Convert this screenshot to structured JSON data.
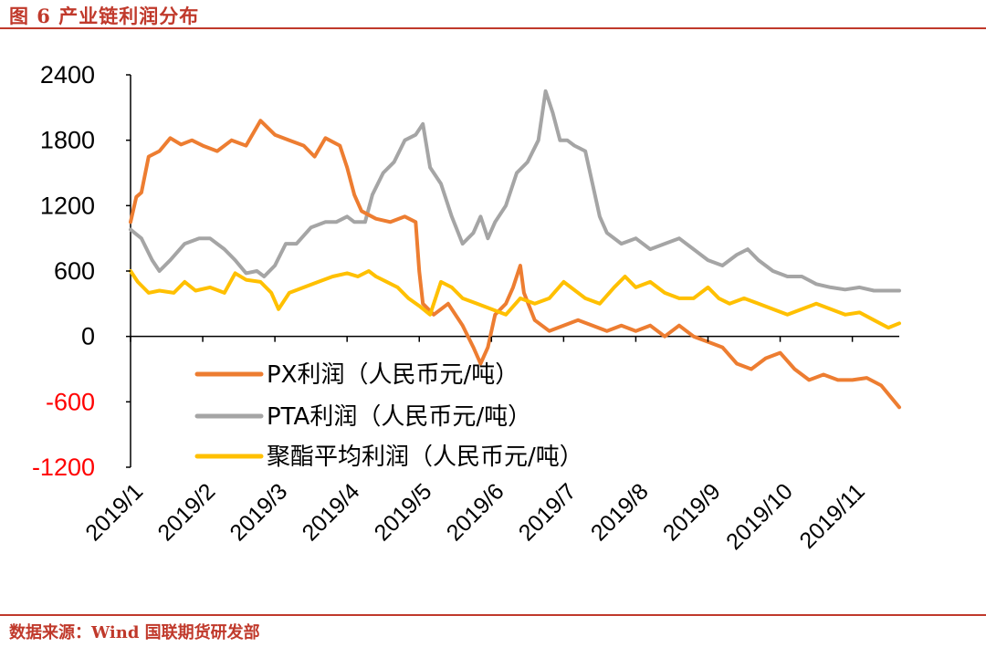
{
  "header": {
    "title": "图 6  产业链利润分布"
  },
  "footer": {
    "source": "数据来源：Wind  国联期货研发部"
  },
  "colors": {
    "accent": "#c0392b",
    "px": "#ed7d31",
    "pta": "#a5a5a5",
    "polyester": "#ffc000",
    "negative_tick": "#ff0000"
  },
  "chart_data": {
    "type": "line",
    "y_ticks": [
      "2400",
      "1800",
      "1200",
      "600",
      "0",
      "-600",
      "-1200"
    ],
    "ylim": [
      -1200,
      2400
    ],
    "x_ticks": [
      "2019/1",
      "2019/2",
      "2019/3",
      "2019/4",
      "2019/5",
      "2019/6",
      "2019/7",
      "2019/8",
      "2019/9",
      "2019/10",
      "2019/11"
    ],
    "x_unit": "month index from 2019/1",
    "xlim": [
      0,
      10.65
    ],
    "legend": [
      "PX利润（人民币元/吨）",
      "PTA利润（人民币元/吨）",
      "聚酯平均利润（人民币元/吨）"
    ],
    "series": [
      {
        "name": "PX利润（人民币元/吨）",
        "color": "#ed7d31",
        "points": [
          [
            0.0,
            1050
          ],
          [
            0.08,
            1280
          ],
          [
            0.15,
            1320
          ],
          [
            0.25,
            1650
          ],
          [
            0.4,
            1700
          ],
          [
            0.55,
            1820
          ],
          [
            0.7,
            1760
          ],
          [
            0.85,
            1800
          ],
          [
            1.0,
            1750
          ],
          [
            1.2,
            1700
          ],
          [
            1.4,
            1800
          ],
          [
            1.6,
            1750
          ],
          [
            1.8,
            1980
          ],
          [
            2.0,
            1850
          ],
          [
            2.2,
            1800
          ],
          [
            2.4,
            1750
          ],
          [
            2.55,
            1650
          ],
          [
            2.7,
            1820
          ],
          [
            2.9,
            1750
          ],
          [
            3.0,
            1550
          ],
          [
            3.1,
            1300
          ],
          [
            3.2,
            1150
          ],
          [
            3.4,
            1080
          ],
          [
            3.6,
            1050
          ],
          [
            3.8,
            1100
          ],
          [
            3.95,
            1050
          ],
          [
            4.0,
            600
          ],
          [
            4.05,
            300
          ],
          [
            4.2,
            200
          ],
          [
            4.4,
            300
          ],
          [
            4.6,
            100
          ],
          [
            4.75,
            -100
          ],
          [
            4.85,
            -250
          ],
          [
            4.95,
            -100
          ],
          [
            5.05,
            200
          ],
          [
            5.2,
            300
          ],
          [
            5.3,
            450
          ],
          [
            5.4,
            650
          ],
          [
            5.45,
            400
          ],
          [
            5.6,
            150
          ],
          [
            5.8,
            50
          ],
          [
            6.0,
            100
          ],
          [
            6.2,
            150
          ],
          [
            6.4,
            100
          ],
          [
            6.6,
            50
          ],
          [
            6.8,
            100
          ],
          [
            7.0,
            50
          ],
          [
            7.2,
            100
          ],
          [
            7.4,
            0
          ],
          [
            7.6,
            100
          ],
          [
            7.8,
            0
          ],
          [
            8.0,
            -50
          ],
          [
            8.2,
            -100
          ],
          [
            8.4,
            -250
          ],
          [
            8.6,
            -300
          ],
          [
            8.8,
            -200
          ],
          [
            9.0,
            -150
          ],
          [
            9.2,
            -300
          ],
          [
            9.4,
            -400
          ],
          [
            9.6,
            -350
          ],
          [
            9.8,
            -400
          ],
          [
            10.0,
            -400
          ],
          [
            10.2,
            -380
          ],
          [
            10.4,
            -450
          ],
          [
            10.65,
            -650
          ]
        ]
      },
      {
        "name": "PTA利润（人民币元/吨）",
        "color": "#a5a5a5",
        "points": [
          [
            0.0,
            980
          ],
          [
            0.15,
            900
          ],
          [
            0.3,
            700
          ],
          [
            0.4,
            600
          ],
          [
            0.55,
            700
          ],
          [
            0.75,
            850
          ],
          [
            0.95,
            900
          ],
          [
            1.1,
            900
          ],
          [
            1.3,
            800
          ],
          [
            1.45,
            700
          ],
          [
            1.6,
            580
          ],
          [
            1.75,
            600
          ],
          [
            1.85,
            550
          ],
          [
            2.0,
            650
          ],
          [
            2.15,
            850
          ],
          [
            2.3,
            850
          ],
          [
            2.5,
            1000
          ],
          [
            2.7,
            1050
          ],
          [
            2.85,
            1050
          ],
          [
            3.0,
            1100
          ],
          [
            3.1,
            1050
          ],
          [
            3.25,
            1050
          ],
          [
            3.35,
            1300
          ],
          [
            3.5,
            1500
          ],
          [
            3.65,
            1600
          ],
          [
            3.8,
            1800
          ],
          [
            3.95,
            1850
          ],
          [
            4.05,
            1950
          ],
          [
            4.15,
            1550
          ],
          [
            4.3,
            1400
          ],
          [
            4.45,
            1100
          ],
          [
            4.6,
            850
          ],
          [
            4.75,
            950
          ],
          [
            4.85,
            1100
          ],
          [
            4.95,
            900
          ],
          [
            5.05,
            1050
          ],
          [
            5.2,
            1200
          ],
          [
            5.35,
            1500
          ],
          [
            5.5,
            1600
          ],
          [
            5.65,
            1800
          ],
          [
            5.75,
            2250
          ],
          [
            5.85,
            2050
          ],
          [
            5.95,
            1800
          ],
          [
            6.05,
            1800
          ],
          [
            6.15,
            1750
          ],
          [
            6.3,
            1700
          ],
          [
            6.4,
            1400
          ],
          [
            6.5,
            1100
          ],
          [
            6.6,
            950
          ],
          [
            6.8,
            850
          ],
          [
            7.0,
            900
          ],
          [
            7.2,
            800
          ],
          [
            7.4,
            850
          ],
          [
            7.6,
            900
          ],
          [
            7.8,
            800
          ],
          [
            8.0,
            700
          ],
          [
            8.2,
            650
          ],
          [
            8.4,
            750
          ],
          [
            8.55,
            800
          ],
          [
            8.7,
            700
          ],
          [
            8.9,
            600
          ],
          [
            9.1,
            550
          ],
          [
            9.3,
            550
          ],
          [
            9.5,
            480
          ],
          [
            9.7,
            450
          ],
          [
            9.9,
            430
          ],
          [
            10.1,
            450
          ],
          [
            10.3,
            420
          ],
          [
            10.5,
            420
          ],
          [
            10.65,
            420
          ]
        ]
      },
      {
        "name": "聚酯平均利润（人民币元/吨）",
        "color": "#ffc000",
        "points": [
          [
            0.0,
            600
          ],
          [
            0.1,
            500
          ],
          [
            0.25,
            400
          ],
          [
            0.4,
            420
          ],
          [
            0.6,
            400
          ],
          [
            0.75,
            500
          ],
          [
            0.9,
            420
          ],
          [
            1.1,
            450
          ],
          [
            1.3,
            400
          ],
          [
            1.45,
            580
          ],
          [
            1.6,
            520
          ],
          [
            1.8,
            500
          ],
          [
            1.95,
            400
          ],
          [
            2.05,
            250
          ],
          [
            2.2,
            400
          ],
          [
            2.4,
            450
          ],
          [
            2.6,
            500
          ],
          [
            2.8,
            550
          ],
          [
            3.0,
            580
          ],
          [
            3.15,
            550
          ],
          [
            3.3,
            600
          ],
          [
            3.4,
            550
          ],
          [
            3.55,
            500
          ],
          [
            3.7,
            450
          ],
          [
            3.85,
            350
          ],
          [
            4.0,
            280
          ],
          [
            4.15,
            200
          ],
          [
            4.3,
            500
          ],
          [
            4.45,
            450
          ],
          [
            4.6,
            350
          ],
          [
            4.8,
            300
          ],
          [
            5.0,
            250
          ],
          [
            5.2,
            200
          ],
          [
            5.4,
            350
          ],
          [
            5.6,
            300
          ],
          [
            5.8,
            350
          ],
          [
            6.0,
            500
          ],
          [
            6.1,
            450
          ],
          [
            6.3,
            350
          ],
          [
            6.5,
            300
          ],
          [
            6.7,
            450
          ],
          [
            6.85,
            550
          ],
          [
            7.0,
            450
          ],
          [
            7.2,
            500
          ],
          [
            7.4,
            400
          ],
          [
            7.6,
            350
          ],
          [
            7.8,
            350
          ],
          [
            8.0,
            450
          ],
          [
            8.15,
            350
          ],
          [
            8.3,
            300
          ],
          [
            8.5,
            350
          ],
          [
            8.7,
            300
          ],
          [
            8.9,
            250
          ],
          [
            9.1,
            200
          ],
          [
            9.3,
            250
          ],
          [
            9.5,
            300
          ],
          [
            9.7,
            250
          ],
          [
            9.9,
            200
          ],
          [
            10.1,
            220
          ],
          [
            10.3,
            150
          ],
          [
            10.5,
            80
          ],
          [
            10.65,
            120
          ]
        ]
      }
    ]
  }
}
